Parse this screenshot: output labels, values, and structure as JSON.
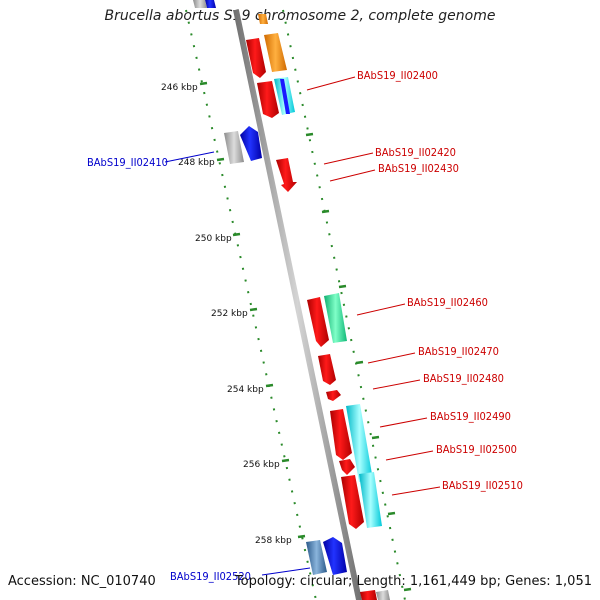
{
  "title": "Brucella abortus S19 chromosome 2, complete genome",
  "footer": {
    "accession": "Accession: NC_010740",
    "summary": "Topology: circular; Length: 1,161,449 bp; Genes: 1,051"
  },
  "colors": {
    "backbone": "#8c8c8c",
    "tick": "#2a8a2a",
    "red_label": "#cc0000",
    "blue_label": "#0000cc"
  },
  "kbp_labels": [
    "246 kbp",
    "248 kbp",
    "250 kbp",
    "252 kbp",
    "254 kbp",
    "256 kbp",
    "258 kbp"
  ],
  "gene_labels": [
    {
      "text": "BAbS19_II02400",
      "color": "red"
    },
    {
      "text": "BAbS19_II02410",
      "color": "blue"
    },
    {
      "text": "BAbS19_II02420",
      "color": "red"
    },
    {
      "text": "BAbS19_II02430",
      "color": "red"
    },
    {
      "text": "BAbS19_II02460",
      "color": "red"
    },
    {
      "text": "BAbS19_II02470",
      "color": "red"
    },
    {
      "text": "BAbS19_II02480",
      "color": "red"
    },
    {
      "text": "BAbS19_II02490",
      "color": "red"
    },
    {
      "text": "BAbS19_II02500",
      "color": "red"
    },
    {
      "text": "BAbS19_II02510",
      "color": "red"
    },
    {
      "text": "BAbS19_II02520",
      "color": "blue"
    }
  ]
}
